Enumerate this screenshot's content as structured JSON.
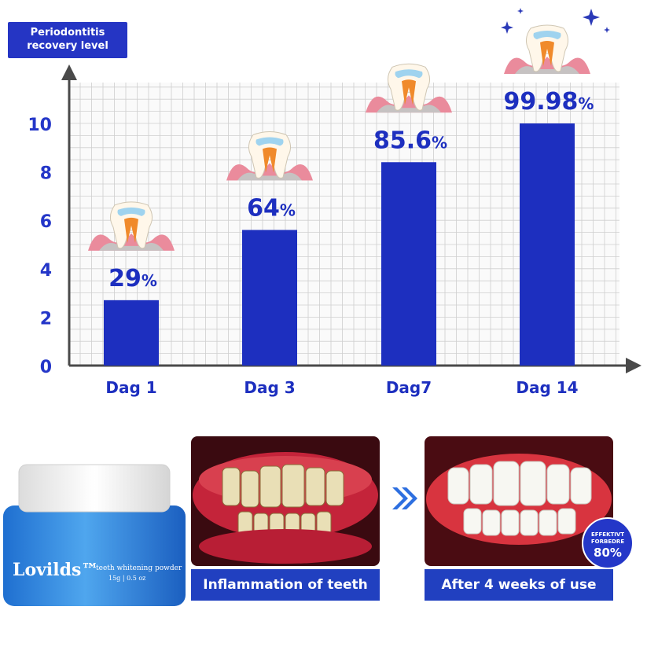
{
  "chart_data": {
    "type": "bar",
    "title": "Periodontitis recovery level",
    "categories": [
      "Dag 1",
      "Dag 3",
      "Dag7",
      "Dag 14"
    ],
    "values": [
      2.7,
      5.6,
      8.4,
      10.0
    ],
    "data_labels": [
      {
        "number": "29",
        "unit": "%"
      },
      {
        "number": "64",
        "unit": "%"
      },
      {
        "number": "85.6",
        "unit": "%"
      },
      {
        "number": "99.98",
        "unit": "%"
      }
    ],
    "yticks": [
      0,
      2,
      4,
      6,
      8,
      10
    ],
    "ylim": [
      0,
      11.5
    ],
    "grid": true,
    "colors": {
      "bar": "#1d2fbf",
      "axis": "#4a4a4a",
      "tick": "#2436c8",
      "grid": "#cfcfcf"
    }
  },
  "product": {
    "brand": "Lovilds™",
    "name": "teeth whitening powder",
    "size": "15g | 0.5 oz"
  },
  "before": {
    "caption": "Inflammation of teeth"
  },
  "after": {
    "caption": "After 4 weeks of use"
  },
  "badge": {
    "line1": "EFFEKTIVT",
    "line2": "FORBEDRE",
    "value": "80%"
  },
  "icons": [
    "tooth-icon",
    "sparkle-icon",
    "double-chevron-right-icon"
  ]
}
